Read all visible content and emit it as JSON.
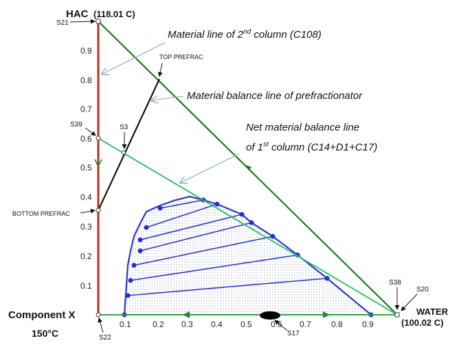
{
  "vertices": {
    "top_name": "HAC",
    "top_temp": "(118.01 C)",
    "left_name": "Component X",
    "left_temp": "150°C",
    "right_name": "WATER",
    "right_temp": "(100.02 C)"
  },
  "yticks": [
    "0.1",
    "0.2",
    "0.3",
    "0.4",
    "0.5",
    "0.6",
    "0.7",
    "0.8",
    "0.9"
  ],
  "xticks": [
    "0.1",
    "0.2",
    "0.3",
    "0.4",
    "0.5",
    "0.6",
    "0.7",
    "0.8",
    "0.9"
  ],
  "streams": {
    "s21": "S21",
    "s39": "S39",
    "s3": "S3",
    "bottom_prefrac": "BOTTOM PREFRAC",
    "top_prefrac": "TOP PREFRAC",
    "s22": "S22",
    "s17": "S17",
    "s38": "S38",
    "s20": "S20"
  },
  "annotations": {
    "mat2_pre": "Material line of 2",
    "mat2_sup": "nd",
    "mat2_post": " column (C108)",
    "prefrac": "Material balance line of prefractionator",
    "net1": "Net material balance line",
    "net2_pre": "of 1",
    "net2_sup": "st",
    "net2_post": " column (C14+D1+C17)"
  },
  "colors": {
    "hac_water_line": "#1a7a1a",
    "net_line": "#33c36b",
    "binodal": "#2b36c8",
    "prefrac_line": "#111111",
    "component_axis": "#b5321c",
    "arrow_callout": "#9ab3d6"
  }
}
